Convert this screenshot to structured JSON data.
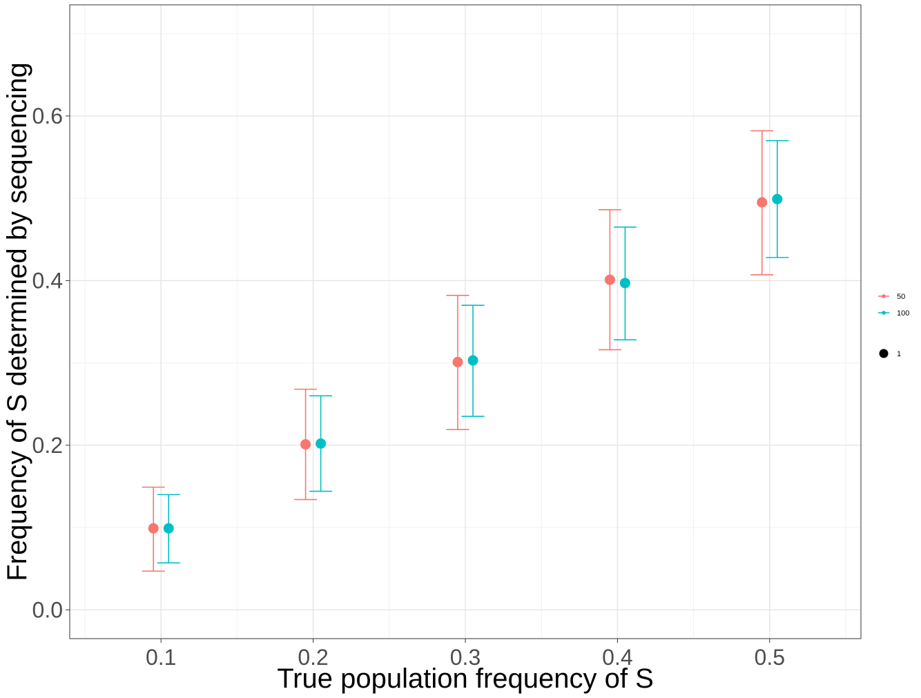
{
  "chart_data": {
    "type": "scatter",
    "title": "",
    "xlabel": "True population frequency of S",
    "ylabel": "Frequency of S determined by sequencing",
    "x_ticks": [
      "0.1",
      "0.2",
      "0.3",
      "0.4",
      "0.5"
    ],
    "y_ticks": [
      "0.0",
      "0.2",
      "0.4",
      "0.6"
    ],
    "xlim": [
      0.04,
      0.56
    ],
    "ylim": [
      -0.035,
      0.735
    ],
    "grid": true,
    "legend_position": "right",
    "series": [
      {
        "name": "50",
        "color": "#F8766D",
        "x": [
          0.1,
          0.2,
          0.3,
          0.4,
          0.5
        ],
        "y": [
          0.099,
          0.201,
          0.301,
          0.401,
          0.495
        ],
        "ymin": [
          0.047,
          0.134,
          0.219,
          0.316,
          0.407
        ],
        "ymax": [
          0.149,
          0.268,
          0.382,
          0.486,
          0.582
        ]
      },
      {
        "name": "100",
        "color": "#00BFC4",
        "x": [
          0.1,
          0.2,
          0.3,
          0.4,
          0.5
        ],
        "y": [
          0.099,
          0.202,
          0.303,
          0.397,
          0.499
        ],
        "ymin": [
          0.057,
          0.144,
          0.235,
          0.328,
          0.428
        ],
        "ymax": [
          0.14,
          0.26,
          0.37,
          0.465,
          0.57
        ]
      }
    ],
    "size_legend": {
      "label": "1"
    }
  }
}
